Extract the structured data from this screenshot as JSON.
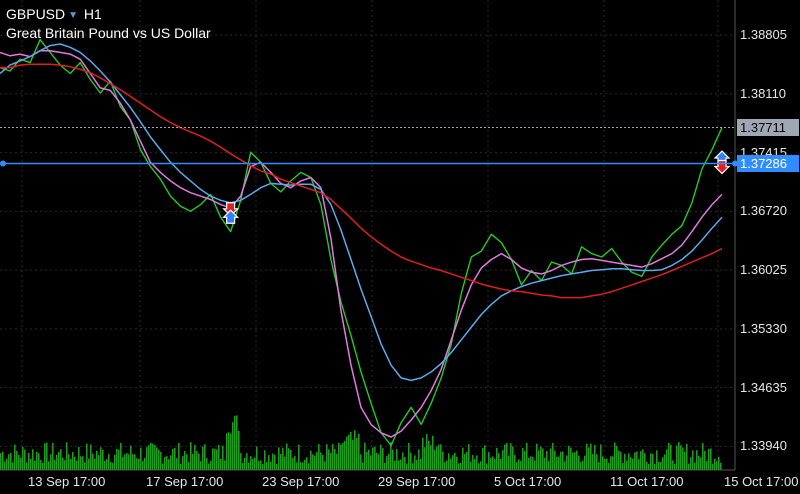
{
  "header": {
    "symbol": "GBPUSD",
    "caret_icon": "triangle-down-icon",
    "timeframe": "H1",
    "description": "Great Britain Pound vs US Dollar"
  },
  "price_axis": {
    "labels": [
      "1.38805",
      "1.38110",
      "1.37415",
      "1.36720",
      "1.36025",
      "1.35330",
      "1.34635",
      "1.33940"
    ]
  },
  "time_axis": {
    "labels": [
      "13 Sep 17:00",
      "17 Sep 17:00",
      "23 Sep 17:00",
      "29 Sep 17:00",
      "5 Oct 17:00",
      "11 Oct 17:00",
      "15 Oct 17:00"
    ]
  },
  "current_price": {
    "value": "1.37711",
    "color": "#9ea7b3"
  },
  "hline": {
    "value": "1.37286",
    "color": "#2f8dff"
  },
  "colors": {
    "background": "#000000",
    "grid": "#2a2a2a",
    "price": "#22cc22",
    "volume": "#1f9a1f",
    "ma_fast": "#e377e3",
    "ma_mid": "#5aaaf0",
    "ma_slow": "#e01e1e"
  },
  "chart_data": {
    "type": "line",
    "ylim": [
      1.3366,
      1.3922
    ],
    "series": [
      {
        "key": "price",
        "values": [
          1.3842,
          1.3838,
          1.3852,
          1.3848,
          1.3875,
          1.386,
          1.3845,
          1.3835,
          1.3848,
          1.3828,
          1.3812,
          1.3826,
          1.3796,
          1.378,
          1.3745,
          1.3725,
          1.371,
          1.369,
          1.3678,
          1.3672,
          1.368,
          1.3692,
          1.3665,
          1.3648,
          1.3685,
          1.3742,
          1.373,
          1.3705,
          1.3695,
          1.3708,
          1.3718,
          1.3712,
          1.368,
          1.3615,
          1.3565,
          1.3525,
          1.3482,
          1.3445,
          1.341,
          1.3395,
          1.3422,
          1.344,
          1.342,
          1.3445,
          1.3475,
          1.3515,
          1.3575,
          1.3618,
          1.3625,
          1.3645,
          1.3635,
          1.3615,
          1.3585,
          1.3602,
          1.359,
          1.3612,
          1.3608,
          1.3598,
          1.363,
          1.3622,
          1.3618,
          1.3628,
          1.3612,
          1.36,
          1.3595,
          1.3618,
          1.3632,
          1.3645,
          1.3655,
          1.3682,
          1.3722,
          1.3745,
          1.3771
        ]
      },
      {
        "key": "ma_fast",
        "values": [
          1.386,
          1.3856,
          1.3858,
          1.3855,
          1.3862,
          1.3862,
          1.386,
          1.3858,
          1.3852,
          1.3835,
          1.3818,
          1.3815,
          1.38,
          1.378,
          1.3755,
          1.373,
          1.3718,
          1.3708,
          1.37,
          1.3694,
          1.369,
          1.3686,
          1.368,
          1.3676,
          1.369,
          1.3725,
          1.373,
          1.3718,
          1.3705,
          1.37,
          1.3708,
          1.3712,
          1.37,
          1.364,
          1.3555,
          1.349,
          1.344,
          1.342,
          1.341,
          1.3405,
          1.3412,
          1.3425,
          1.344,
          1.346,
          1.3485,
          1.352,
          1.3555,
          1.3585,
          1.3605,
          1.3615,
          1.3622,
          1.3615,
          1.3605,
          1.36,
          1.3598,
          1.3602,
          1.3608,
          1.3612,
          1.3615,
          1.3616,
          1.3614,
          1.3612,
          1.361,
          1.3608,
          1.3606,
          1.361,
          1.3616,
          1.3622,
          1.3632,
          1.3648,
          1.3665,
          1.368,
          1.3692
        ]
      },
      {
        "key": "ma_mid",
        "values": [
          1.3835,
          1.3845,
          1.385,
          1.3855,
          1.3862,
          1.3868,
          1.387,
          1.3866,
          1.386,
          1.385,
          1.3838,
          1.3825,
          1.381,
          1.3795,
          1.3778,
          1.376,
          1.3745,
          1.373,
          1.3718,
          1.3708,
          1.3698,
          1.369,
          1.3685,
          1.3682,
          1.3685,
          1.3692,
          1.37,
          1.3705,
          1.3704,
          1.3703,
          1.3704,
          1.3704,
          1.3698,
          1.368,
          1.365,
          1.3615,
          1.358,
          1.3548,
          1.3515,
          1.349,
          1.3475,
          1.3472,
          1.3475,
          1.3482,
          1.3492,
          1.3505,
          1.352,
          1.3535,
          1.355,
          1.3562,
          1.3572,
          1.3578,
          1.3583,
          1.3587,
          1.359,
          1.3593,
          1.3596,
          1.3598,
          1.36,
          1.3602,
          1.3603,
          1.3604,
          1.3604,
          1.3603,
          1.3602,
          1.3602,
          1.3603,
          1.3608,
          1.3615,
          1.3625,
          1.3638,
          1.3652,
          1.3665
        ]
      },
      {
        "key": "ma_slow",
        "values": [
          1.3842,
          1.3842,
          1.3845,
          1.3846,
          1.3846,
          1.3846,
          1.3845,
          1.3843,
          1.384,
          1.3836,
          1.383,
          1.3823,
          1.3816,
          1.3808,
          1.38,
          1.3792,
          1.3784,
          1.3777,
          1.3771,
          1.3766,
          1.3761,
          1.3755,
          1.3748,
          1.374,
          1.3733,
          1.3726,
          1.372,
          1.3716,
          1.371,
          1.3706,
          1.3702,
          1.3698,
          1.3694,
          1.3686,
          1.3675,
          1.3664,
          1.3652,
          1.3642,
          1.3633,
          1.3625,
          1.3618,
          1.3613,
          1.3609,
          1.3605,
          1.3602,
          1.3598,
          1.3594,
          1.359,
          1.3586,
          1.3583,
          1.358,
          1.3578,
          1.3577,
          1.3575,
          1.3573,
          1.3572,
          1.357,
          1.357,
          1.357,
          1.3572,
          1.3574,
          1.3577,
          1.3581,
          1.3585,
          1.3589,
          1.3593,
          1.3597,
          1.3602,
          1.3607,
          1.3612,
          1.3617,
          1.3622,
          1.3628
        ]
      }
    ],
    "markers": [
      {
        "key": "sell-arrow-icon",
        "x_index": 23,
        "y": 1.3675,
        "type": "sell"
      },
      {
        "key": "buy-arrow-icon",
        "x_index": 23,
        "y": 1.3665,
        "type": "buy"
      },
      {
        "key": "buy-arrow-icon",
        "x_index": 72,
        "y": 1.3735,
        "type": "buy"
      },
      {
        "key": "sell-arrow-icon",
        "x_index": 72,
        "y": 1.3725,
        "type": "sell"
      }
    ]
  }
}
